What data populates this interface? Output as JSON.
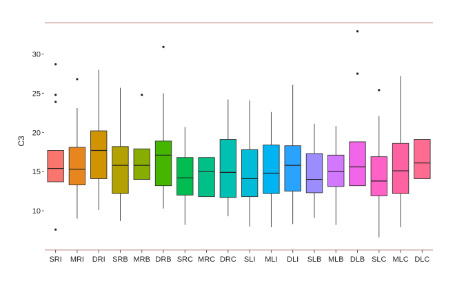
{
  "chart_data": {
    "type": "box",
    "title": "",
    "xlabel": "",
    "ylabel": "C3",
    "ylim": [
      5,
      34
    ],
    "yticks": [
      10,
      15,
      20,
      25,
      30
    ],
    "grid": false,
    "legend": "none",
    "categories": [
      "SRI",
      "MRI",
      "DRI",
      "SRB",
      "MRB",
      "DRB",
      "SRC",
      "MRC",
      "DRC",
      "SLI",
      "MLI",
      "DLI",
      "SLB",
      "MLB",
      "DLB",
      "SLC",
      "MLC",
      "DLC"
    ],
    "boxes": [
      {
        "q1": 13.7,
        "median": 15.4,
        "q3": 17.7,
        "whisker_low": 13.7,
        "whisker_high": 17.7,
        "outliers": [
          28.7,
          24.8,
          23.9,
          7.6
        ],
        "color": "#F8766D"
      },
      {
        "q1": 13.3,
        "median": 15.3,
        "q3": 18.1,
        "whisker_low": 9.0,
        "whisker_high": 23.1,
        "outliers": [
          26.8
        ],
        "color": "#E7851E"
      },
      {
        "q1": 14.1,
        "median": 17.7,
        "q3": 20.2,
        "whisker_low": 10.1,
        "whisker_high": 28.0,
        "outliers": [],
        "color": "#D09400"
      },
      {
        "q1": 12.2,
        "median": 15.8,
        "q3": 18.2,
        "whisker_low": 8.7,
        "whisker_high": 25.7,
        "outliers": [],
        "color": "#B2A100"
      },
      {
        "q1": 14.0,
        "median": 15.8,
        "q3": 17.9,
        "whisker_low": 14.0,
        "whisker_high": 17.9,
        "outliers": [
          24.8
        ],
        "color": "#89AC00"
      },
      {
        "q1": 13.2,
        "median": 17.1,
        "q3": 18.9,
        "whisker_low": 10.3,
        "whisker_high": 25.0,
        "outliers": [
          30.9
        ],
        "color": "#45B500"
      },
      {
        "q1": 12.0,
        "median": 14.2,
        "q3": 16.8,
        "whisker_low": 8.2,
        "whisker_high": 20.7,
        "outliers": [],
        "color": "#00BC51"
      },
      {
        "q1": 11.8,
        "median": 15.0,
        "q3": 16.8,
        "whisker_low": 11.8,
        "whisker_high": 16.8,
        "outliers": [],
        "color": "#00C087"
      },
      {
        "q1": 11.7,
        "median": 14.9,
        "q3": 19.1,
        "whisker_low": 9.3,
        "whisker_high": 24.2,
        "outliers": [],
        "color": "#00C0B2"
      },
      {
        "q1": 11.8,
        "median": 14.1,
        "q3": 17.8,
        "whisker_low": 8.0,
        "whisker_high": 24.1,
        "outliers": [],
        "color": "#00BCD6"
      },
      {
        "q1": 12.2,
        "median": 14.8,
        "q3": 18.4,
        "whisker_low": 7.9,
        "whisker_high": 22.6,
        "outliers": [],
        "color": "#00B3F2"
      },
      {
        "q1": 12.5,
        "median": 15.8,
        "q3": 18.3,
        "whisker_low": 8.3,
        "whisker_high": 26.1,
        "outliers": [],
        "color": "#29A3FF"
      },
      {
        "q1": 12.3,
        "median": 14.0,
        "q3": 17.3,
        "whisker_low": 9.1,
        "whisker_high": 21.1,
        "outliers": [],
        "color": "#9C8DFF"
      },
      {
        "q1": 13.1,
        "median": 15.0,
        "q3": 17.1,
        "whisker_low": 8.2,
        "whisker_high": 20.8,
        "outliers": [],
        "color": "#D277FF"
      },
      {
        "q1": 13.2,
        "median": 15.6,
        "q3": 18.8,
        "whisker_low": 13.2,
        "whisker_high": 18.8,
        "outliers": [
          32.9,
          27.5
        ],
        "color": "#F166E8"
      },
      {
        "q1": 11.9,
        "median": 13.8,
        "q3": 16.9,
        "whisker_low": 6.6,
        "whisker_high": 22.1,
        "outliers": [
          25.4
        ],
        "color": "#FF61C7"
      },
      {
        "q1": 12.2,
        "median": 15.1,
        "q3": 18.6,
        "whisker_low": 7.9,
        "whisker_high": 27.2,
        "outliers": [],
        "color": "#FF62A0"
      },
      {
        "q1": 14.1,
        "median": 16.1,
        "q3": 19.1,
        "whisker_low": 14.1,
        "whisker_high": 19.1,
        "outliers": [],
        "color": "#FF6C91"
      }
    ]
  }
}
